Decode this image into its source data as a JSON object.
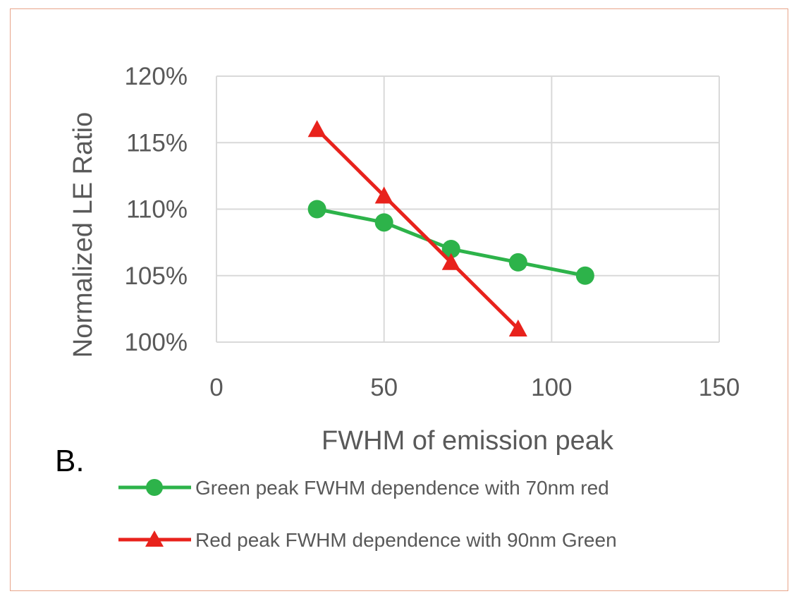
{
  "panel_label": "B.",
  "colors": {
    "green": "#2db34a",
    "red": "#e8221c",
    "grid": "#d9d9d9",
    "text": "#595959",
    "frame": "#e8a48a"
  },
  "chart_data": {
    "type": "line",
    "xlabel": "FWHM of emission peak",
    "ylabel": "Normalized LE Ratio",
    "xlim": [
      0,
      150
    ],
    "ylim": [
      1.0,
      1.2
    ],
    "x_ticks": [
      0,
      50,
      100,
      150
    ],
    "x_tick_labels": [
      "0",
      "50",
      "100",
      "150"
    ],
    "y_ticks": [
      1.0,
      1.05,
      1.1,
      1.15,
      1.2
    ],
    "y_tick_labels": [
      "100%",
      "105%",
      "110%",
      "115%",
      "120%"
    ],
    "grid": true,
    "legend_position": "bottom",
    "series": [
      {
        "name": "Green peak FWHM dependence with 70nm red",
        "marker": "circle",
        "color": "#2db34a",
        "points": [
          {
            "x": 30,
            "y": 1.1
          },
          {
            "x": 50,
            "y": 1.09
          },
          {
            "x": 70,
            "y": 1.07
          },
          {
            "x": 90,
            "y": 1.06
          },
          {
            "x": 110,
            "y": 1.05
          }
        ]
      },
      {
        "name": "Red peak FWHM dependence with 90nm Green",
        "marker": "triangle",
        "color": "#e8221c",
        "points": [
          {
            "x": 30,
            "y": 1.16
          },
          {
            "x": 50,
            "y": 1.11
          },
          {
            "x": 70,
            "y": 1.06
          },
          {
            "x": 90,
            "y": 1.01
          }
        ]
      }
    ]
  }
}
